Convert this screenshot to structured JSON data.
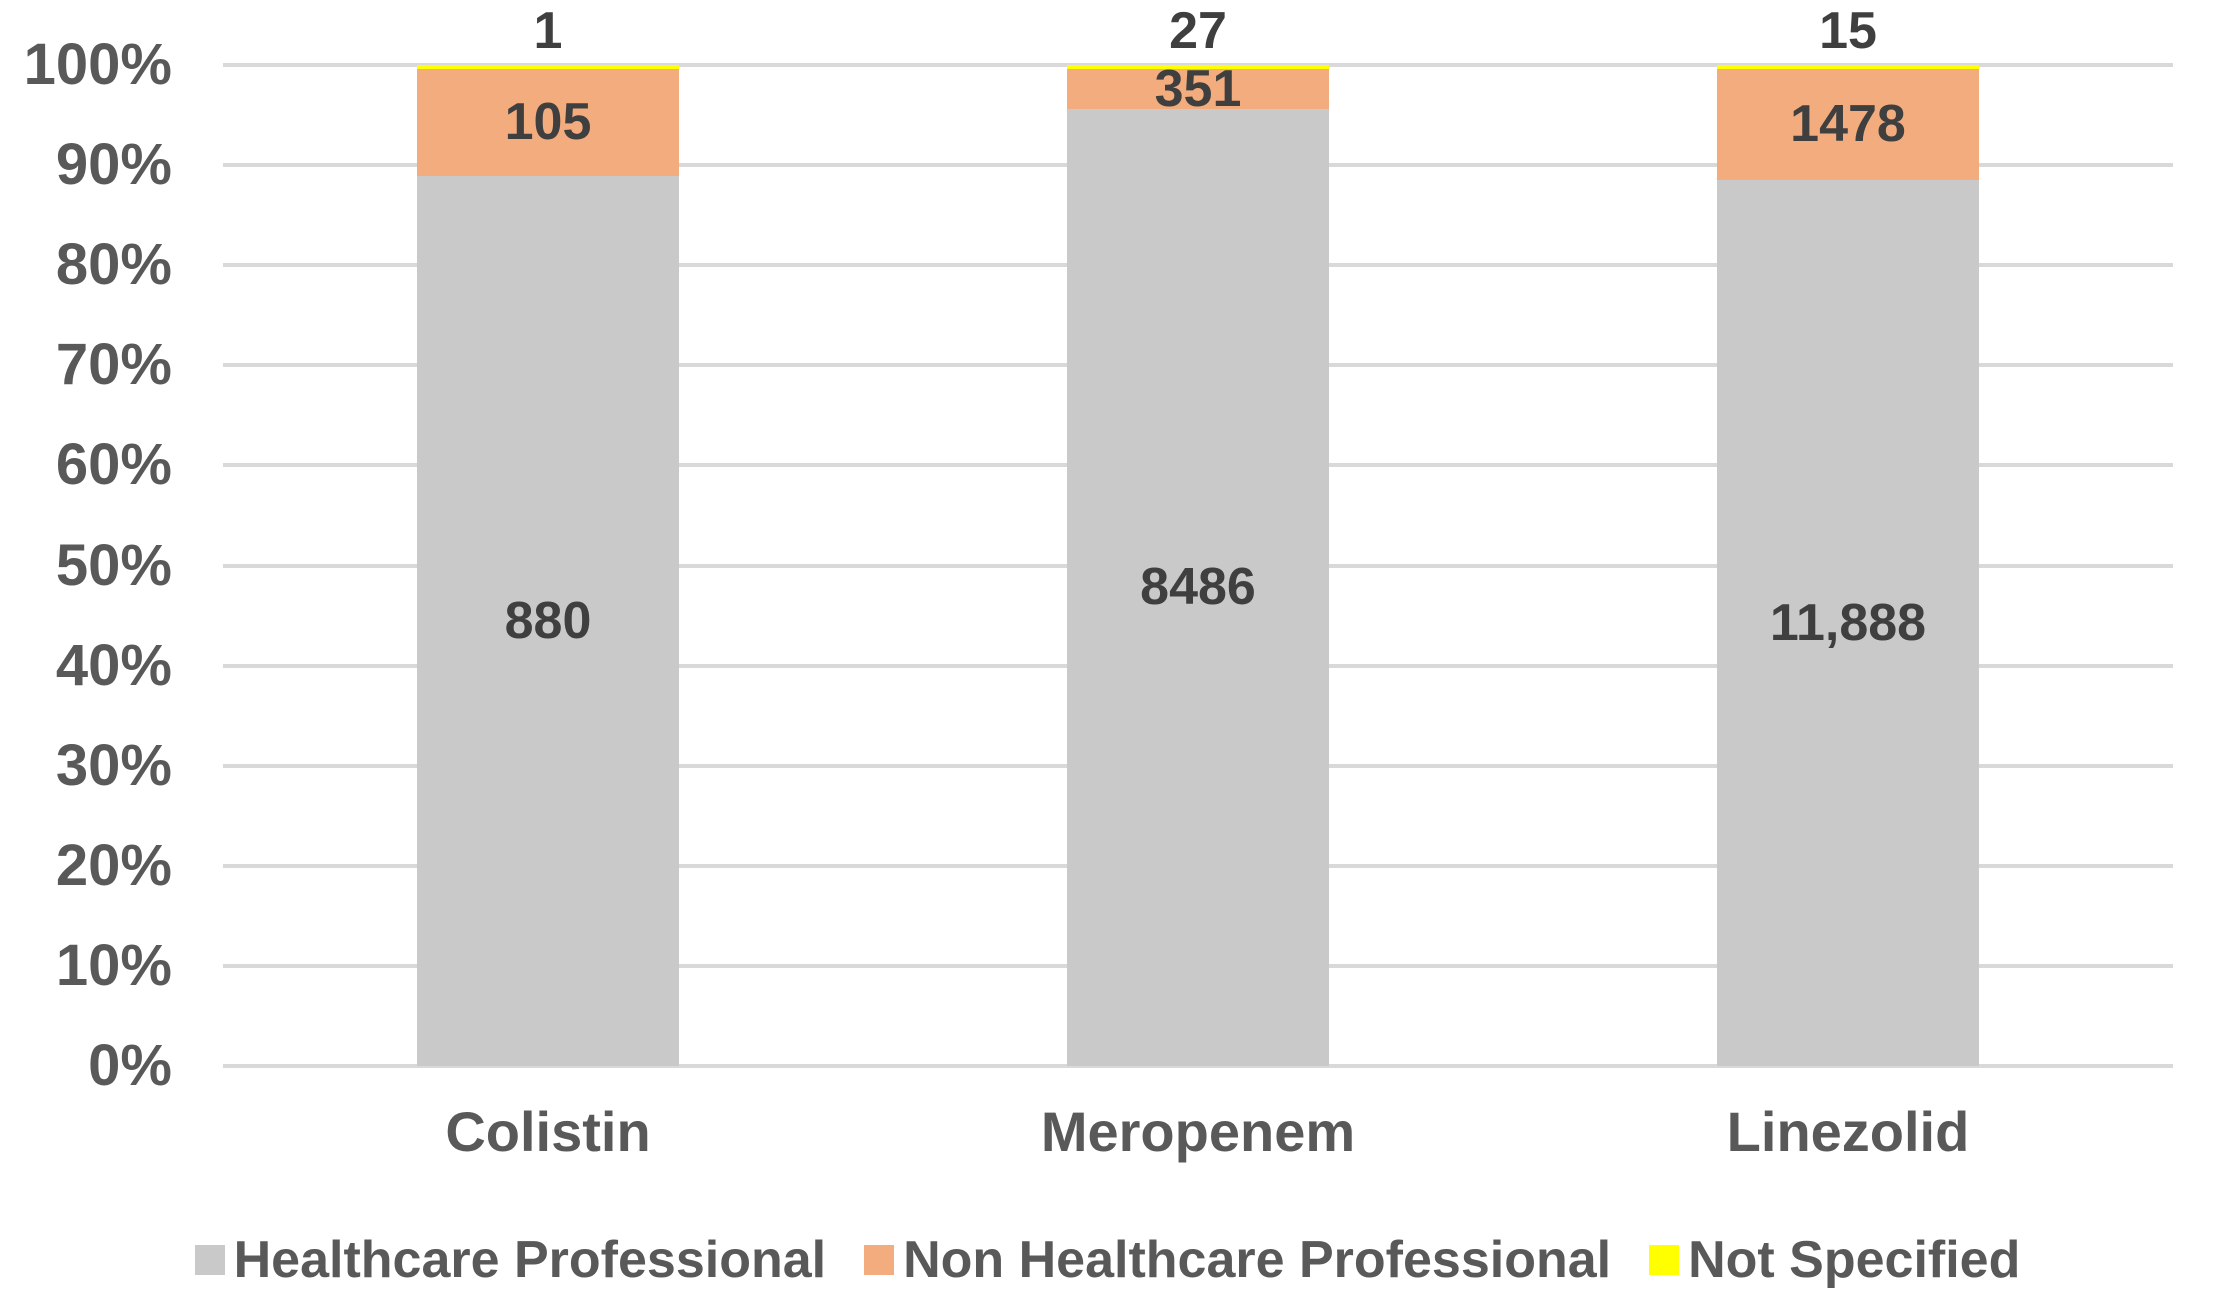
{
  "chart_data": {
    "type": "bar",
    "variant": "100-percent-stacked-column",
    "title": "",
    "categories": [
      "Colistin",
      "Meropenem",
      "Linezolid"
    ],
    "series": [
      {
        "name": "Healthcare Professional",
        "color": "#C9C9C9",
        "values": [
          880,
          8486,
          11888
        ],
        "values_display": [
          "880",
          "8486",
          "11,888"
        ],
        "label_placement": "inside"
      },
      {
        "name": "Non Healthcare Professional",
        "color": "#F3AC7D",
        "values": [
          105,
          351,
          1478
        ],
        "values_display": [
          "105",
          "351",
          "1478"
        ],
        "label_placement": "inside"
      },
      {
        "name": "Not Specified",
        "color": "#FFFF00",
        "values": [
          1,
          27,
          15
        ],
        "values_display": [
          "1",
          "27",
          "15"
        ],
        "label_placement": "outside-top"
      }
    ],
    "y_axis": {
      "min": 0,
      "max": 100,
      "tick_step": 10,
      "tick_labels": [
        "0%",
        "10%",
        "20%",
        "30%",
        "40%",
        "50%",
        "60%",
        "70%",
        "80%",
        "90%",
        "100%"
      ]
    },
    "grid": true,
    "legend_position": "bottom"
  },
  "styles": {
    "background": "#FFFFFF",
    "gridline_color": "#D9D9D9",
    "axis_text_color": "#595959",
    "data_label_color": "#3F3F3F"
  }
}
